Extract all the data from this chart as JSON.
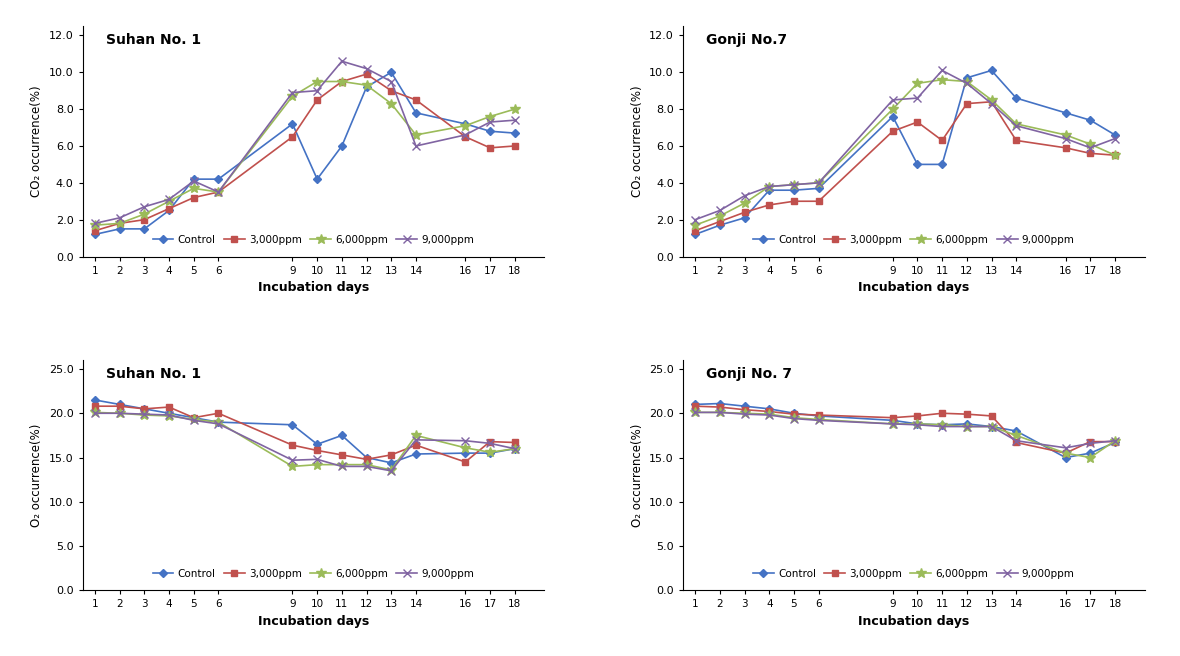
{
  "x_ticks": [
    1,
    2,
    3,
    4,
    5,
    6,
    9,
    10,
    11,
    12,
    13,
    14,
    16,
    17,
    18
  ],
  "suhan_co2": {
    "title": "Suhan No. 1",
    "control": [
      1.2,
      1.5,
      1.5,
      2.5,
      4.2,
      4.2,
      7.2,
      4.2,
      6.0,
      9.2,
      10.0,
      7.8,
      7.2,
      6.8,
      6.7
    ],
    "ppm3000": [
      1.4,
      1.8,
      2.0,
      2.6,
      3.2,
      3.5,
      6.5,
      8.5,
      9.5,
      9.9,
      9.0,
      8.5,
      6.5,
      5.9,
      6.0
    ],
    "ppm6000": [
      1.7,
      1.8,
      2.3,
      3.0,
      3.7,
      3.5,
      8.7,
      9.5,
      9.5,
      9.3,
      8.3,
      6.6,
      7.1,
      7.6,
      8.0
    ],
    "ppm9000": [
      1.8,
      2.1,
      2.7,
      3.1,
      4.1,
      3.5,
      8.9,
      9.0,
      10.6,
      10.2,
      9.5,
      6.0,
      6.6,
      7.3,
      7.4
    ]
  },
  "gonji_co2": {
    "title": "Gonji No.7",
    "control": [
      1.2,
      1.7,
      2.1,
      3.6,
      3.6,
      3.7,
      7.6,
      5.0,
      5.0,
      9.7,
      10.1,
      8.6,
      7.8,
      7.4,
      6.6
    ],
    "ppm3000": [
      1.4,
      1.9,
      2.4,
      2.8,
      3.0,
      3.0,
      6.8,
      7.3,
      6.3,
      8.3,
      8.4,
      6.3,
      5.9,
      5.6,
      5.5
    ],
    "ppm6000": [
      1.7,
      2.2,
      2.9,
      3.8,
      3.9,
      4.0,
      8.0,
      9.4,
      9.6,
      9.5,
      8.5,
      7.2,
      6.6,
      6.1,
      5.5
    ],
    "ppm9000": [
      2.0,
      2.5,
      3.3,
      3.8,
      3.9,
      4.0,
      8.5,
      8.6,
      10.1,
      9.4,
      8.3,
      7.1,
      6.4,
      5.9,
      6.4
    ]
  },
  "suhan_o2": {
    "title": "Suhan No. 1",
    "control": [
      21.5,
      21.0,
      20.5,
      20.0,
      19.5,
      19.0,
      18.7,
      16.5,
      17.5,
      15.0,
      14.4,
      15.4,
      15.5,
      15.5,
      16.0
    ],
    "ppm3000": [
      20.8,
      20.8,
      20.5,
      20.7,
      19.5,
      20.0,
      16.4,
      15.8,
      15.3,
      14.8,
      15.3,
      16.4,
      14.5,
      16.8,
      16.7
    ],
    "ppm6000": [
      20.1,
      20.0,
      19.8,
      19.7,
      19.3,
      19.0,
      14.0,
      14.2,
      14.2,
      14.2,
      13.6,
      17.5,
      16.1,
      15.6,
      16.0
    ],
    "ppm9000": [
      20.0,
      20.0,
      19.9,
      19.8,
      19.2,
      18.8,
      14.7,
      14.8,
      14.0,
      14.0,
      13.5,
      17.0,
      16.9,
      16.6,
      16.0
    ]
  },
  "gonji_o2": {
    "title": "Gonji No. 7",
    "control": [
      21.0,
      21.1,
      20.8,
      20.5,
      20.0,
      19.7,
      19.2,
      18.8,
      18.7,
      18.8,
      18.5,
      18.0,
      15.0,
      15.5,
      16.7
    ],
    "ppm3000": [
      20.8,
      20.7,
      20.4,
      20.2,
      19.9,
      19.8,
      19.5,
      19.7,
      20.0,
      19.9,
      19.7,
      16.7,
      15.5,
      16.8,
      16.8
    ],
    "ppm6000": [
      20.1,
      20.1,
      20.0,
      19.9,
      19.5,
      19.3,
      18.8,
      18.8,
      18.7,
      18.5,
      18.5,
      17.5,
      15.5,
      15.0,
      16.9
    ],
    "ppm9000": [
      20.1,
      20.1,
      19.9,
      19.8,
      19.4,
      19.2,
      18.8,
      18.7,
      18.5,
      18.5,
      18.5,
      16.9,
      16.1,
      16.6,
      16.9
    ]
  },
  "colors": {
    "control": "#4472C4",
    "ppm3000": "#C0504D",
    "ppm6000": "#9BBB59",
    "ppm9000": "#8064A2"
  },
  "legend_labels": [
    "Control",
    "3,000ppm",
    "6,000ppm",
    "9,000ppm"
  ],
  "xlabel": "Incubation days",
  "co2_ylabel": "CO₂ occurrence(%)",
  "o2_ylabel": "O₂ occurrence(%)"
}
